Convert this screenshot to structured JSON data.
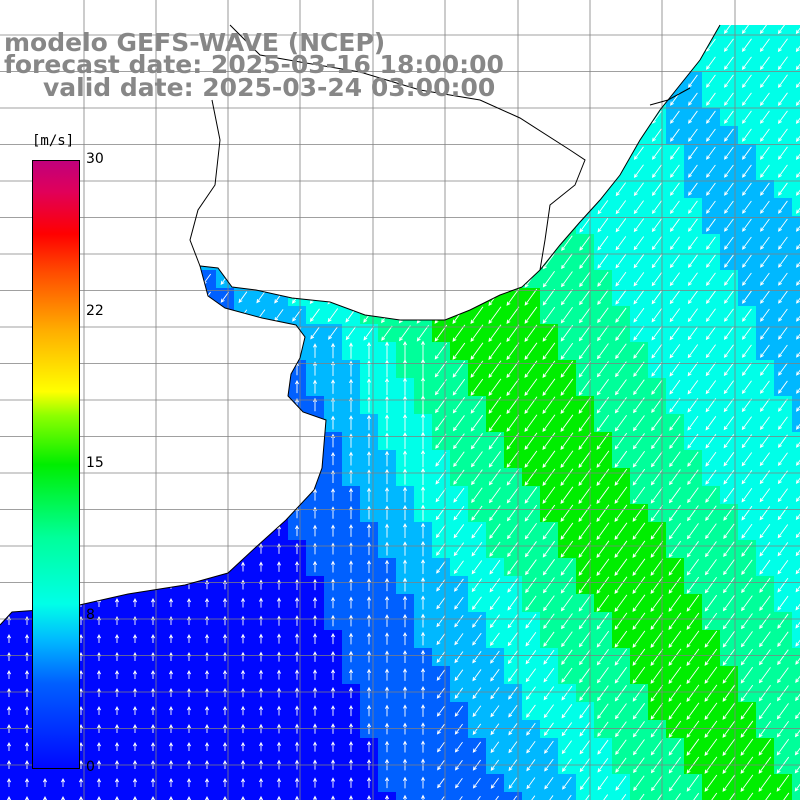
{
  "title": {
    "line1": "modelo GEFS-WAVE (NCEP)",
    "line2": "forecast date: 2025-03-16 18:00:00",
    "line3": "valid date: 2025-03-24 03:00:00"
  },
  "colorbar": {
    "unit": "[m/s]",
    "ticks": [
      "30",
      "22",
      "15",
      "8",
      "0"
    ],
    "range": [
      0,
      30
    ]
  },
  "field": {
    "variable": "wind speed and direction",
    "arrows": "white vectors showing wind direction",
    "palette_stops": [
      "#0008ff",
      "#0060ff",
      "#00b8ff",
      "#00ffe8",
      "#00ff9a",
      "#00ee00"
    ],
    "land_color": "#ffffff",
    "coastline_color": "#000000",
    "grid_color": "#808080"
  }
}
